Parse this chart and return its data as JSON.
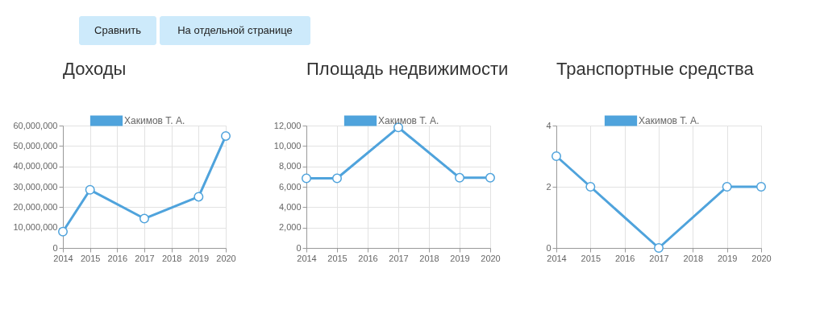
{
  "chart_data": [
    {
      "type": "other",
      "annotations": [
        "Сравнить",
        "На отдельной странице"
      ]
    },
    {
      "type": "line",
      "title": "Доходы",
      "x": [
        2014,
        2015,
        2017,
        2019,
        2020
      ],
      "xlim": [
        2014,
        2020
      ],
      "xticks": [
        2014,
        2015,
        2016,
        2017,
        2018,
        2019,
        2020
      ],
      "ylim": [
        0,
        60000000
      ],
      "yticks": [
        0,
        {
          "value": 10000000,
          "label": "10,000,000"
        },
        {
          "value": 20000000,
          "label": "20,000,000"
        },
        {
          "value": 30000000,
          "label": "30,000,000"
        },
        {
          "value": 40000000,
          "label": "40,000,000"
        },
        {
          "value": 50000000,
          "label": "50,000,000"
        },
        {
          "value": 60000000,
          "label": "60,000,000"
        }
      ],
      "grid": true,
      "legend": "top",
      "marker": "circle",
      "line_style": "solid",
      "series": [
        {
          "name": "Хакимов Т. А.",
          "color": "#4fa3dc",
          "values": [
            8000000,
            28500000,
            14400000,
            25100000,
            54900000
          ]
        }
      ]
    },
    {
      "type": "line",
      "title": "Площадь недвижимости",
      "x": [
        2014,
        2015,
        2017,
        2019,
        2020
      ],
      "xlim": [
        2014,
        2020
      ],
      "xticks": [
        2014,
        2015,
        2016,
        2017,
        2018,
        2019,
        2020
      ],
      "ylim": [
        0,
        12000
      ],
      "yticks": [
        0,
        {
          "value": 2000,
          "label": "2,000"
        },
        {
          "value": 4000,
          "label": "4,000"
        },
        {
          "value": 6000,
          "label": "6,000"
        },
        {
          "value": 8000,
          "label": "8,000"
        },
        {
          "value": 10000,
          "label": "10,000"
        },
        {
          "value": 12000,
          "label": "12,000"
        }
      ],
      "grid": true,
      "legend": "top",
      "marker": "circle",
      "line_style": "solid",
      "series": [
        {
          "name": "Хакимов Т. А.",
          "color": "#4fa3dc",
          "values": [
            6830,
            6830,
            11820,
            6880,
            6880
          ]
        }
      ]
    },
    {
      "type": "line",
      "title": "Транспортные средства",
      "x": [
        2014,
        2015,
        2017,
        2019,
        2020
      ],
      "xlim": [
        2014,
        2020
      ],
      "xticks": [
        2014,
        2015,
        2016,
        2017,
        2018,
        2019,
        2020
      ],
      "ylim": [
        0,
        4
      ],
      "yticks": [
        0,
        2,
        4
      ],
      "grid": true,
      "legend": "top",
      "marker": "circle",
      "line_style": "solid",
      "series": [
        {
          "name": "Хакимов Т. А.",
          "color": "#4fa3dc",
          "values": [
            3,
            2,
            0,
            2,
            2
          ]
        }
      ]
    }
  ]
}
